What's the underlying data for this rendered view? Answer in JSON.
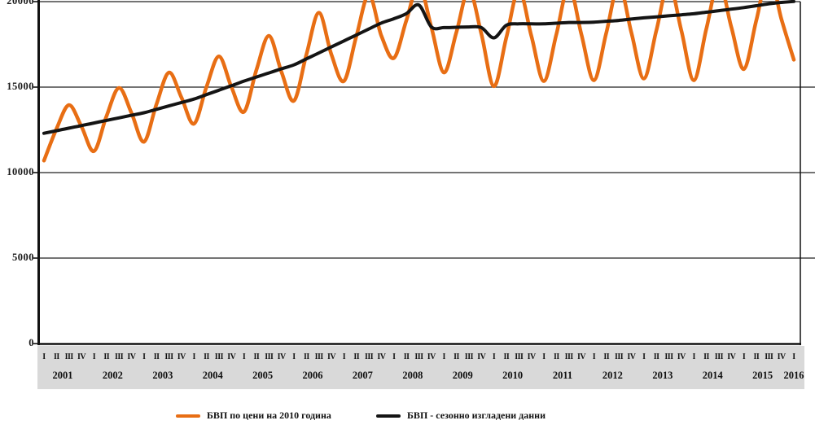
{
  "chart_data": {
    "type": "line",
    "title": "",
    "x_axis": {
      "years": [
        "2001",
        "2002",
        "2003",
        "2004",
        "2005",
        "2006",
        "2007",
        "2008",
        "2009",
        "2010",
        "2011",
        "2012",
        "2013",
        "2014",
        "2015"
      ],
      "quarters_pattern": [
        "I",
        "II",
        "III",
        "IV"
      ],
      "final_year": "2016",
      "final_quarter": "I"
    },
    "y_axis": {
      "min": 0,
      "max_visible": 20000,
      "ticks": [
        {
          "label": "20000",
          "value": 20000
        },
        {
          "label": "15000",
          "value": 15000
        },
        {
          "label": "10000",
          "value": 10000
        },
        {
          "label": "5000",
          "value": 5000
        },
        {
          "label": "0",
          "value": 0
        }
      ],
      "grid": true
    },
    "legend_position": "bottom",
    "series": [
      {
        "name": "БВП по цени на 2010 година",
        "color": "#E86E14",
        "values": [
          10700,
          12550,
          13950,
          12700,
          11250,
          13300,
          14950,
          13500,
          11800,
          14000,
          15850,
          14400,
          12850,
          15000,
          16800,
          15000,
          13550,
          16000,
          18000,
          15900,
          14200,
          16900,
          19350,
          16900,
          15350,
          18000,
          20400,
          18000,
          16700,
          18900,
          21000,
          18500,
          15850,
          18200,
          20700,
          18100,
          15050,
          17900,
          20700,
          18000,
          15350,
          18100,
          20900,
          18100,
          15400,
          18200,
          21000,
          18200,
          15500,
          18300,
          21100,
          18300,
          15400,
          18400,
          21200,
          18500,
          16050,
          18900,
          21700,
          19000,
          16600
        ]
      },
      {
        "name": "БВП - сезонно изгладени данни",
        "color": "#141414",
        "values": [
          12300,
          12450,
          12600,
          12750,
          12900,
          13050,
          13200,
          13350,
          13500,
          13700,
          13900,
          14100,
          14300,
          14560,
          14820,
          15080,
          15350,
          15590,
          15830,
          16070,
          16300,
          16650,
          17000,
          17350,
          17700,
          18050,
          18400,
          18750,
          19000,
          19300,
          19800,
          18520,
          18480,
          18500,
          18520,
          18480,
          17880,
          18620,
          18700,
          18700,
          18700,
          18740,
          18780,
          18780,
          18800,
          18850,
          18900,
          18980,
          19050,
          19110,
          19170,
          19230,
          19290,
          19380,
          19470,
          19560,
          19650,
          19760,
          19870,
          19950,
          20010
        ]
      }
    ]
  },
  "legend": {
    "item1": "БВП по цени на 2010 година",
    "item2": "БВП - сезонно изгладени данни"
  },
  "colors": {
    "orange": "#E86E14",
    "black": "#141414",
    "axis_band": "#d9d9d9",
    "gridline": "#222222"
  }
}
